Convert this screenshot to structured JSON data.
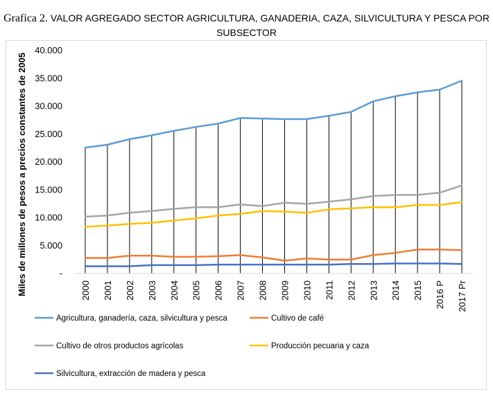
{
  "title": {
    "prefix": "Grafica 2.",
    "line1": "VALOR AGREGADO SECTOR AGRICULTURA, GANADERIA, CAZA, SILVICULTURA Y PESCA POR",
    "line2": "SUBSECTOR"
  },
  "chart_data": {
    "type": "line",
    "ylabel": "Miles de millones de pesos a precios constantes de 2005",
    "xlabel": "",
    "ylim": [
      0,
      40000
    ],
    "y_ticks": [
      {
        "value": 0,
        "label": "-"
      },
      {
        "value": 5000,
        "label": "5.000"
      },
      {
        "value": 10000,
        "label": "10.000"
      },
      {
        "value": 15000,
        "label": "15.000"
      },
      {
        "value": 20000,
        "label": "20.000"
      },
      {
        "value": 25000,
        "label": "25.000"
      },
      {
        "value": 30000,
        "label": "30.000"
      },
      {
        "value": 35000,
        "label": "35.000"
      },
      {
        "value": 40000,
        "label": "40.000"
      }
    ],
    "categories": [
      "2000",
      "2001",
      "2002",
      "2003",
      "2004",
      "2005",
      "2006",
      "2007",
      "2008",
      "2009",
      "2010",
      "2011",
      "2012",
      "2013",
      "2014",
      "2015",
      "2016 P",
      "2017 Pr"
    ],
    "grid": false,
    "drop_lines": true,
    "legend_position": "bottom",
    "series": [
      {
        "name": "Agricultura, ganadería, caza, silvicultura y pesca",
        "color": "#5b9bd5",
        "values": [
          22600,
          23100,
          24100,
          24800,
          25600,
          26300,
          26900,
          27900,
          27800,
          27700,
          27700,
          28300,
          29000,
          30900,
          31800,
          32500,
          33000,
          34600
        ]
      },
      {
        "name": "Cultivo de café",
        "color": "#ed7d31",
        "values": [
          2800,
          2800,
          3200,
          3200,
          3000,
          3000,
          3100,
          3300,
          2900,
          2300,
          2700,
          2500,
          2500,
          3300,
          3700,
          4300,
          4300,
          4200
        ]
      },
      {
        "name": "Cultivo de otros productos agrícolas",
        "color": "#a5a5a5",
        "values": [
          10200,
          10400,
          10900,
          11200,
          11600,
          11900,
          11900,
          12400,
          12100,
          12700,
          12500,
          12900,
          13300,
          13900,
          14100,
          14100,
          14500,
          15800
        ]
      },
      {
        "name": "Producción pecuaria y caza",
        "color": "#ffc000",
        "values": [
          8400,
          8600,
          8900,
          9100,
          9500,
          9900,
          10400,
          10700,
          11200,
          11100,
          10900,
          11500,
          11700,
          11900,
          11900,
          12300,
          12300,
          12800
        ]
      },
      {
        "name": "Silvicultura, extracción de madera y pesca",
        "color": "#4472c4",
        "values": [
          1300,
          1300,
          1300,
          1500,
          1500,
          1500,
          1600,
          1600,
          1600,
          1600,
          1600,
          1600,
          1700,
          1700,
          1800,
          1800,
          1800,
          1700
        ]
      }
    ]
  }
}
